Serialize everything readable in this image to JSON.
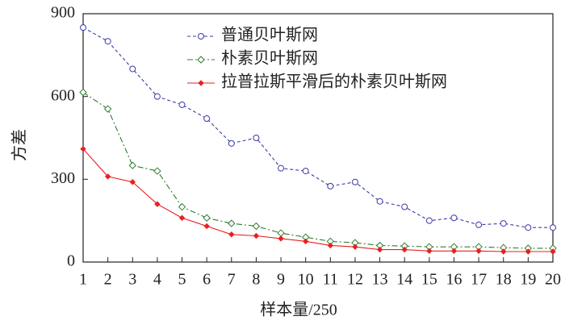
{
  "chart_data": {
    "type": "line",
    "x_label": "样本量/250",
    "y_label": "方差",
    "x": [
      1,
      2,
      3,
      4,
      5,
      6,
      7,
      8,
      9,
      10,
      11,
      12,
      13,
      14,
      15,
      16,
      17,
      18,
      19,
      20
    ],
    "xlim": [
      1,
      20
    ],
    "xticks": [
      1,
      2,
      3,
      4,
      5,
      6,
      7,
      8,
      9,
      10,
      11,
      12,
      13,
      14,
      15,
      16,
      17,
      18,
      19,
      20
    ],
    "ylim": [
      0,
      900
    ],
    "yticks": [
      0,
      300,
      600,
      900
    ],
    "grid": false,
    "legend": "upper right",
    "series": [
      {
        "name": "普通贝叶斯网",
        "color": "#3a3aa8",
        "marker": "circle",
        "dash": "dashed",
        "values": [
          850,
          800,
          700,
          600,
          570,
          520,
          430,
          450,
          340,
          330,
          275,
          290,
          220,
          200,
          150,
          160,
          135,
          140,
          125,
          125
        ]
      },
      {
        "name": "朴素贝叶斯网",
        "color": "#2e7d32",
        "marker": "diamond",
        "dash": "dashdot",
        "values": [
          615,
          555,
          350,
          330,
          200,
          160,
          140,
          130,
          105,
          90,
          75,
          70,
          60,
          58,
          55,
          55,
          55,
          52,
          50,
          50
        ]
      },
      {
        "name": "拉普拉斯平滑后的朴素贝叶斯网",
        "color": "#e82020",
        "marker": "filled-diamond",
        "dash": "solid",
        "values": [
          410,
          310,
          290,
          210,
          160,
          130,
          100,
          95,
          85,
          75,
          60,
          55,
          45,
          45,
          40,
          40,
          40,
          38,
          38,
          38
        ]
      }
    ]
  }
}
